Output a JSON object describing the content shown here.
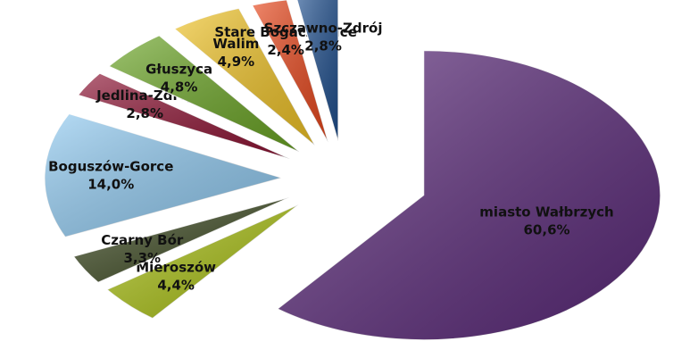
{
  "chart_data": {
    "type": "pie",
    "categories": [
      "miasto Wałbrzych",
      "Mieroszów",
      "Czarny Bór",
      "Boguszów-Gorce",
      "Jedlina-Zdrój",
      "Głuszyca",
      "Walim",
      "Stare Bogaczowice",
      "Szczawno-Zdrój"
    ],
    "values": [
      60.6,
      4.4,
      3.3,
      14.0,
      2.8,
      4.8,
      4.9,
      2.4,
      2.8
    ],
    "value_labels": [
      "60,6%",
      "4,4%",
      "3,3%",
      "14,0%",
      "2,8%",
      "4,8%",
      "4,9%",
      "2,4%",
      "2,8%"
    ],
    "colors": [
      "#5b2a7a",
      "#a8bf12",
      "#3d4a22",
      "#8fc9f0",
      "#8c1232",
      "#6aa424",
      "#f0c326",
      "#e8471c",
      "#1f4f8e"
    ]
  }
}
